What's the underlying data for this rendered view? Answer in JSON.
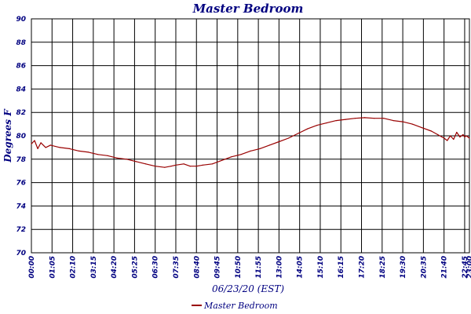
{
  "chart_data": {
    "type": "line",
    "title": "Master Bedroom",
    "xlabel": "06/23/20 (EST)",
    "ylabel": "Degrees F",
    "ylim": [
      70,
      90
    ],
    "yticks": [
      "70",
      "72",
      "74",
      "76",
      "78",
      "80",
      "82",
      "84",
      "86",
      "88",
      "90"
    ],
    "xticks": [
      "00:00",
      "01:05",
      "02:10",
      "03:15",
      "04:20",
      "05:25",
      "06:30",
      "07:35",
      "08:40",
      "09:45",
      "10:50",
      "11:55",
      "13:00",
      "14:05",
      "15:10",
      "16:15",
      "17:20",
      "18:25",
      "19:30",
      "20:35",
      "21:40",
      "22:45",
      "23:00"
    ],
    "grid": true,
    "legend_position": "bottom-center",
    "colors": {
      "series": "#990000",
      "text": "#000080",
      "grid": "#000000"
    },
    "series": [
      {
        "name": "Master Bedroom",
        "x": [
          "00:00",
          "00:10",
          "00:20",
          "00:30",
          "00:45",
          "01:00",
          "01:30",
          "02:00",
          "02:30",
          "03:00",
          "03:30",
          "04:00",
          "04:30",
          "05:00",
          "05:30",
          "06:00",
          "06:30",
          "07:00",
          "07:20",
          "07:35",
          "08:00",
          "08:20",
          "08:40",
          "09:00",
          "09:30",
          "10:00",
          "10:30",
          "11:00",
          "11:30",
          "12:00",
          "12:30",
          "13:00",
          "13:30",
          "14:00",
          "14:30",
          "15:00",
          "15:30",
          "16:00",
          "16:30",
          "17:00",
          "17:30",
          "18:00",
          "18:30",
          "19:00",
          "19:30",
          "20:00",
          "20:30",
          "21:00",
          "21:20",
          "21:40",
          "21:50",
          "22:00",
          "22:10",
          "22:20",
          "22:30",
          "22:40",
          "22:45",
          "22:50",
          "23:00"
        ],
        "values": [
          79.3,
          79.6,
          78.9,
          79.4,
          79.0,
          79.2,
          79.0,
          78.9,
          78.7,
          78.6,
          78.4,
          78.3,
          78.1,
          78.0,
          77.8,
          77.6,
          77.4,
          77.3,
          77.4,
          77.5,
          77.6,
          77.4,
          77.4,
          77.5,
          77.6,
          77.9,
          78.2,
          78.4,
          78.7,
          78.9,
          79.2,
          79.5,
          79.8,
          80.2,
          80.6,
          80.9,
          81.1,
          81.3,
          81.4,
          81.5,
          81.55,
          81.5,
          81.5,
          81.3,
          81.2,
          81.0,
          80.7,
          80.4,
          80.1,
          79.8,
          79.6,
          80.0,
          79.7,
          80.3,
          79.9,
          80.1,
          79.9,
          80.0,
          79.8
        ]
      }
    ]
  }
}
